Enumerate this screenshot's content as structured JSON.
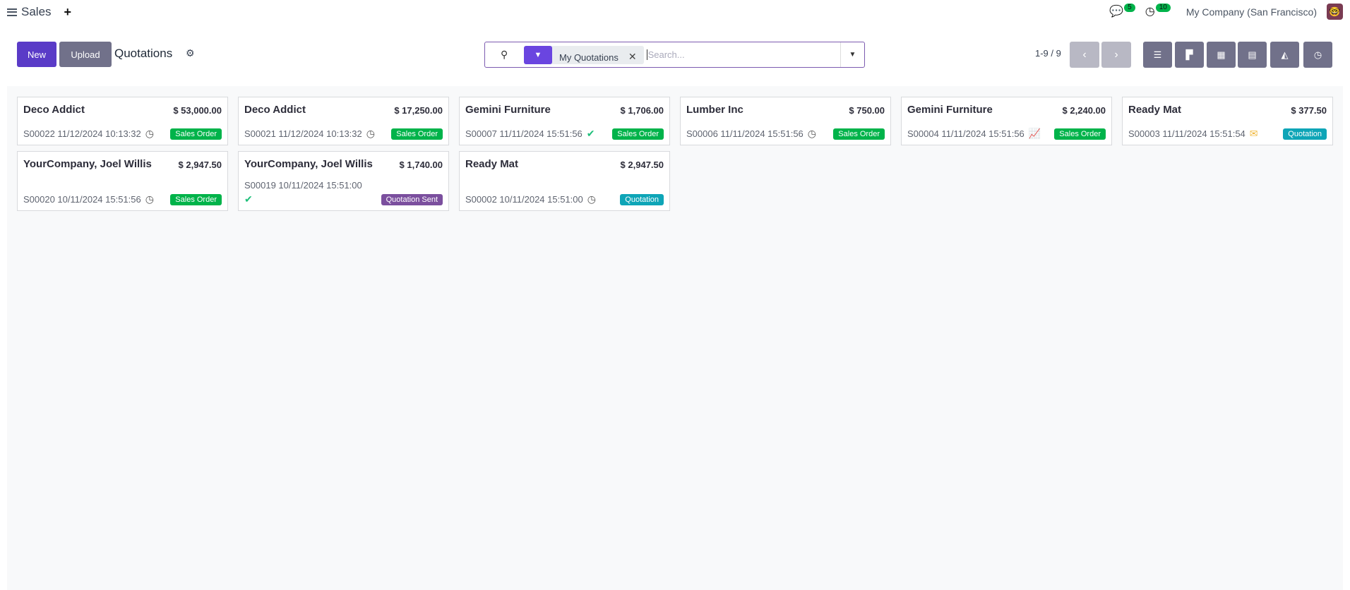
{
  "app": {
    "name": "Sales",
    "messages_count": "5",
    "activities_count": "10",
    "company": "My Company (San Francisco)"
  },
  "control": {
    "new_label": "New",
    "upload_label": "Upload",
    "title": "Quotations",
    "pager": "1-9 / 9"
  },
  "search": {
    "facet": "My Quotations",
    "placeholder": "Search..."
  },
  "views": [
    "list",
    "kanban",
    "calendar",
    "pivot",
    "graph",
    "activity"
  ],
  "colors": {
    "primary": "#5a3bc7",
    "sales_order": "#00b34a",
    "quotation": "#0ea5b7",
    "quotation_sent": "#7b4f9e"
  },
  "cards": [
    {
      "name": "Deco Addict",
      "amount": "$ 53,000.00",
      "ref": "S00022 11/12/2024 10:13:32",
      "activity": "clock-icon",
      "status": "Sales Order",
      "color": "#00b34a"
    },
    {
      "name": "Deco Addict",
      "amount": "$ 17,250.00",
      "ref": "S00021 11/12/2024 10:13:32",
      "activity": "clock-icon",
      "status": "Sales Order",
      "color": "#00b34a"
    },
    {
      "name": "Gemini Furniture",
      "amount": "$ 1,706.00",
      "ref": "S00007 11/11/2024 15:51:56",
      "activity": "check-icon",
      "status": "Sales Order",
      "color": "#00b34a"
    },
    {
      "name": "Lumber Inc",
      "amount": "$ 750.00",
      "ref": "S00006 11/11/2024 15:51:56",
      "activity": "clock-icon",
      "status": "Sales Order",
      "color": "#00b34a"
    },
    {
      "name": "Gemini Furniture",
      "amount": "$ 2,240.00",
      "ref": "S00004 11/11/2024 15:51:56",
      "activity": "chart-icon",
      "status": "Sales Order",
      "color": "#00b34a"
    },
    {
      "name": "Ready Mat",
      "amount": "$ 377.50",
      "ref": "S00003 11/11/2024 15:51:54",
      "activity": "envelope-icon",
      "status": "Quotation",
      "color": "#0ea5b7"
    },
    {
      "name": "YourCompany, Joel Willis",
      "amount": "$ 2,947.50",
      "ref": "S00020 10/11/2024 15:51:56",
      "activity": "clock-icon",
      "status": "Sales Order",
      "color": "#00b34a"
    },
    {
      "name": "YourCompany, Joel Willis",
      "amount": "$ 1,740.00",
      "ref": "S00019 10/11/2024 15:51:00",
      "activity": "check-icon",
      "status": "Quotation Sent",
      "color": "#7b4f9e",
      "ref_above": true
    },
    {
      "name": "Ready Mat",
      "amount": "$ 2,947.50",
      "ref": "S00002 10/11/2024 15:51:00",
      "activity": "clock-icon",
      "status": "Quotation",
      "color": "#0ea5b7"
    }
  ]
}
